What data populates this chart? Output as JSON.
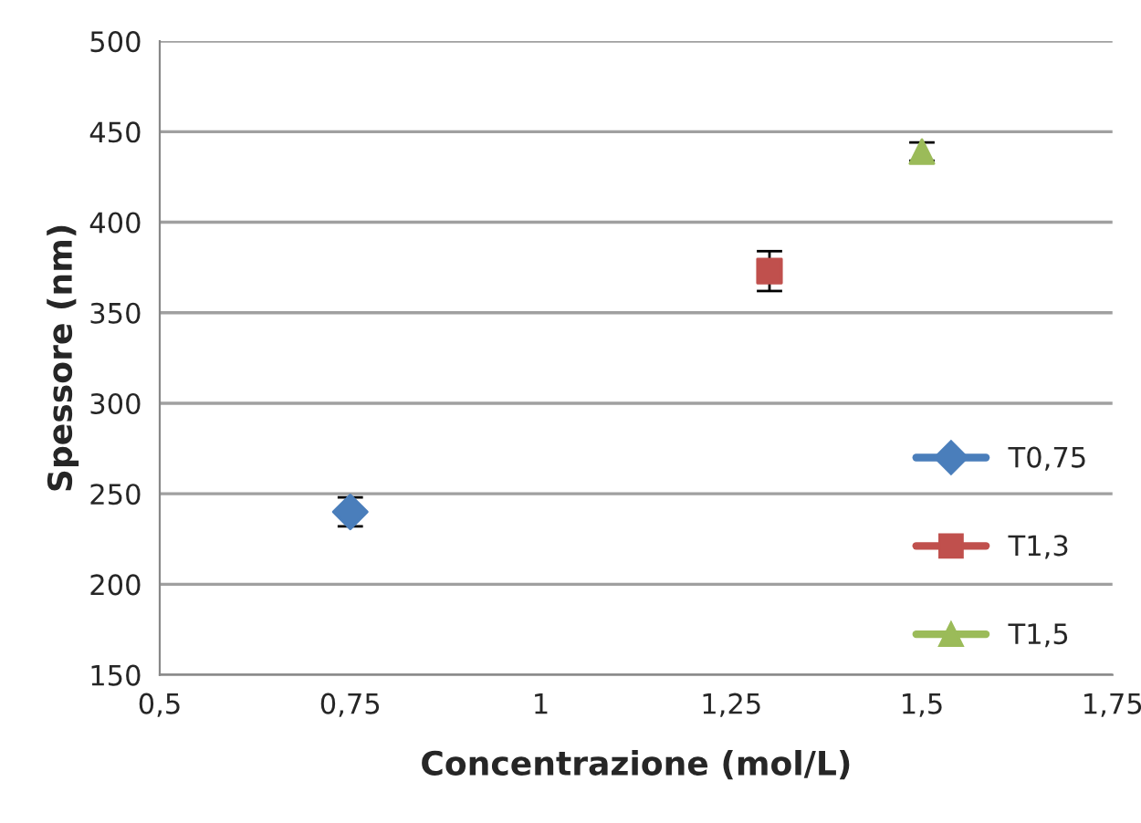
{
  "chart_data": {
    "type": "scatter",
    "xlabel": "Concentrazione (mol/L)",
    "ylabel": "Spessore (nm)",
    "series": [
      {
        "name": "T0,75",
        "color": "#4a7ebb",
        "x": [
          0.75
        ],
        "values": [
          240
        ],
        "errors": [
          8
        ],
        "marker": "diamond"
      },
      {
        "name": "T1,3",
        "color": "#c0504d",
        "x": [
          1.3
        ],
        "values": [
          373
        ],
        "errors": [
          11
        ],
        "marker": "square"
      },
      {
        "name": "T1,5",
        "color": "#9bbb59",
        "x": [
          1.5
        ],
        "values": [
          439
        ],
        "errors": [
          5
        ],
        "marker": "triangle"
      }
    ],
    "xlim": [
      0.5,
      1.75
    ],
    "xticks": [
      {
        "value": 0.5,
        "label": "0,5"
      },
      {
        "value": 0.75,
        "label": "0,75"
      },
      {
        "value": 1,
        "label": "1"
      },
      {
        "value": 1.25,
        "label": "1,25"
      },
      {
        "value": 1.5,
        "label": "1,5"
      },
      {
        "value": 1.75,
        "label": "1,75"
      }
    ],
    "ylim": [
      150,
      500
    ],
    "yticks": [
      150,
      200,
      250,
      300,
      350,
      400,
      450,
      500
    ],
    "grid": "y",
    "legend": "bottom right"
  }
}
